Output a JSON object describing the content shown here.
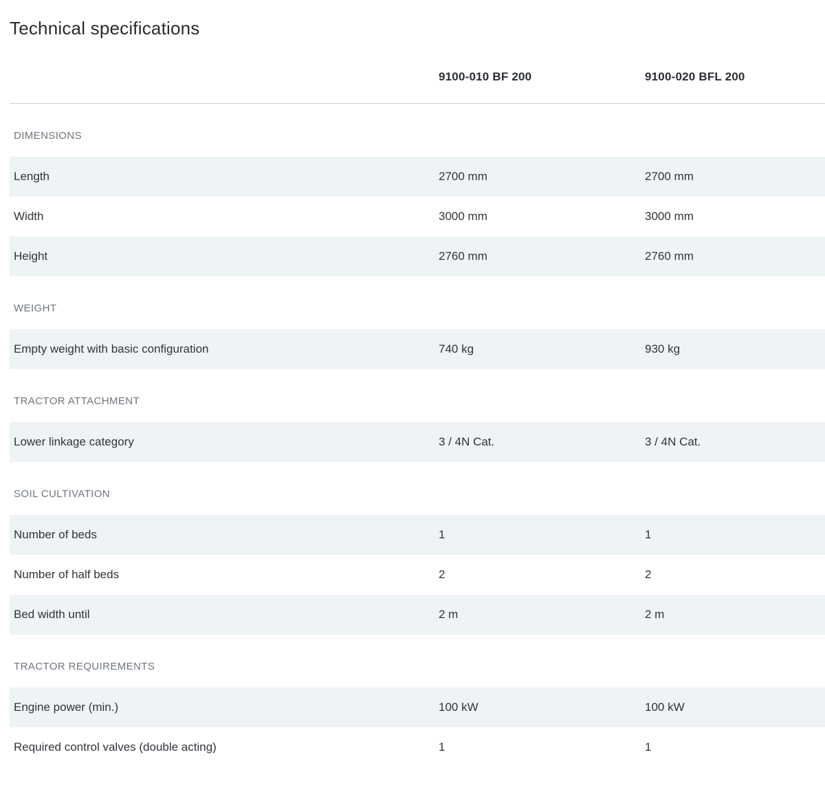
{
  "page": {
    "title": "Technical specifications"
  },
  "colors": {
    "row_stripe": "#eef3f5",
    "divider": "#d3d3d3",
    "label_text": "#30343a",
    "section_heading_text": "#6d757d"
  },
  "table": {
    "columns": [
      "9100-010 BF 200",
      "9100-020 BFL 200"
    ],
    "sections": [
      {
        "heading": "DIMENSIONS",
        "rows": [
          {
            "label": "Length",
            "values": [
              "2700 mm",
              "2700 mm"
            ]
          },
          {
            "label": "Width",
            "values": [
              "3000 mm",
              "3000 mm"
            ]
          },
          {
            "label": "Height",
            "values": [
              "2760 mm",
              "2760 mm"
            ]
          }
        ]
      },
      {
        "heading": "WEIGHT",
        "rows": [
          {
            "label": "Empty weight with basic configuration",
            "values": [
              "740 kg",
              "930 kg"
            ]
          }
        ]
      },
      {
        "heading": "TRACTOR ATTACHMENT",
        "rows": [
          {
            "label": "Lower linkage category",
            "values": [
              "3 / 4N Cat.",
              "3 / 4N Cat."
            ]
          }
        ]
      },
      {
        "heading": "SOIL CULTIVATION",
        "rows": [
          {
            "label": "Number of beds",
            "values": [
              "1",
              "1"
            ]
          },
          {
            "label": "Number of half beds",
            "values": [
              "2",
              "2"
            ]
          },
          {
            "label": "Bed width until",
            "values": [
              "2 m",
              "2 m"
            ]
          }
        ]
      },
      {
        "heading": "TRACTOR REQUIREMENTS",
        "rows": [
          {
            "label": "Engine power (min.)",
            "values": [
              "100 kW",
              "100 kW"
            ]
          },
          {
            "label": "Required control valves (double acting)",
            "values": [
              "1",
              "1"
            ]
          }
        ]
      }
    ]
  }
}
